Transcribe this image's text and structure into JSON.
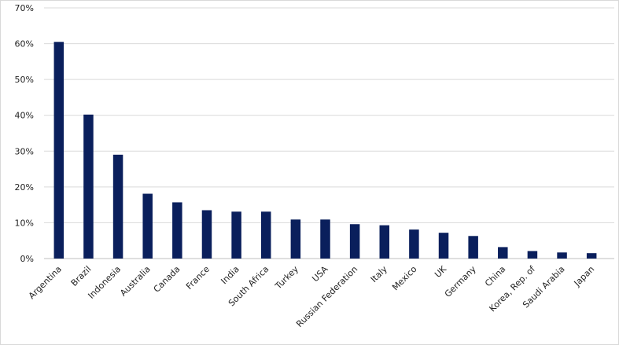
{
  "chart_data": {
    "type": "bar",
    "title": "",
    "xlabel": "",
    "ylabel": "",
    "ylim": [
      0,
      70
    ],
    "y_unit": "%",
    "y_ticks": [
      "0%",
      "10%",
      "20%",
      "30%",
      "40%",
      "50%",
      "60%",
      "70%"
    ],
    "y_tick_values": [
      0,
      10,
      20,
      30,
      40,
      50,
      60,
      70
    ],
    "grid": true,
    "legend": "none",
    "categories": [
      "Argentina",
      "Brazil",
      "Indonesia",
      "Australia",
      "Canada",
      "France",
      "India",
      "South Africa",
      "Turkey",
      "USA",
      "Russian Federation",
      "Italy",
      "Mexico",
      "UK",
      "Germany",
      "China",
      "Korea, Rep. of",
      "Saudi Arabia",
      "Japan"
    ],
    "values": [
      60.5,
      40.2,
      29.0,
      18.1,
      15.7,
      13.5,
      13.1,
      13.1,
      10.9,
      10.9,
      9.6,
      9.3,
      8.1,
      7.2,
      6.3,
      3.2,
      2.1,
      1.7,
      1.5
    ],
    "bar_color": "#0a1f5c"
  }
}
